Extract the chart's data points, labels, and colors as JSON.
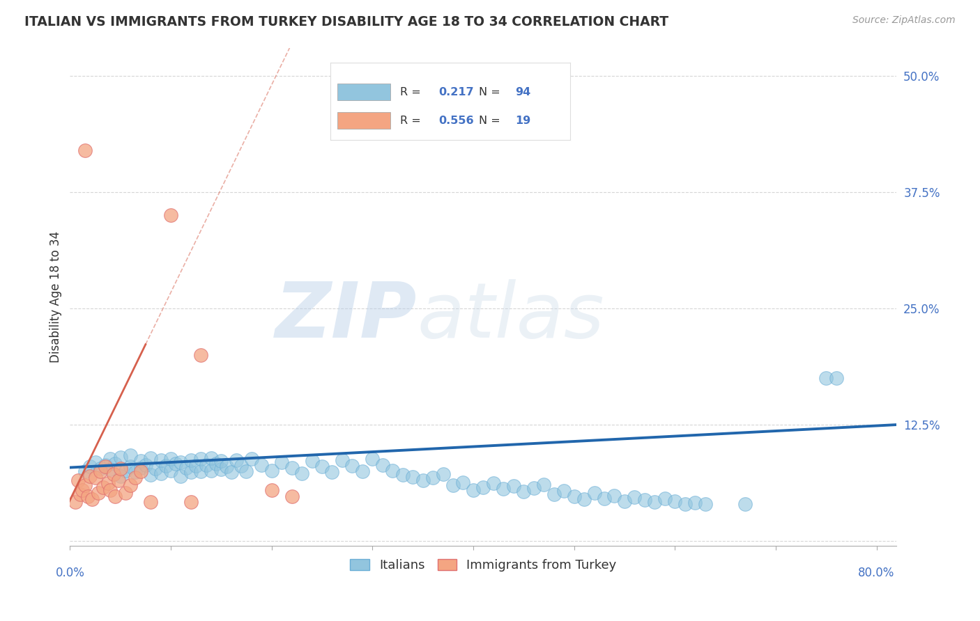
{
  "title": "ITALIAN VS IMMIGRANTS FROM TURKEY DISABILITY AGE 18 TO 34 CORRELATION CHART",
  "source": "Source: ZipAtlas.com",
  "ylabel": "Disability Age 18 to 34",
  "xlim": [
    0.0,
    0.82
  ],
  "ylim": [
    -0.005,
    0.53
  ],
  "xticks": [
    0.0,
    0.1,
    0.2,
    0.3,
    0.4,
    0.5,
    0.6,
    0.7,
    0.8
  ],
  "yticks_right": [
    0.0,
    0.125,
    0.25,
    0.375,
    0.5
  ],
  "ytick_labels_right": [
    "",
    "12.5%",
    "25.0%",
    "37.5%",
    "50.0%"
  ],
  "blue_color": "#92c5de",
  "blue_edge_color": "#6aaed6",
  "pink_color": "#f4a582",
  "pink_edge_color": "#e07070",
  "line_blue_color": "#2166ac",
  "line_pink_color": "#d6604d",
  "watermark_zip": "ZIP",
  "watermark_atlas": "atlas",
  "watermark_color": "#c8dff0",
  "axis_label_color": "#4472c4",
  "grid_color": "#cccccc",
  "background_color": "#ffffff",
  "blue_scatter_x": [
    0.015,
    0.02,
    0.025,
    0.03,
    0.035,
    0.04,
    0.04,
    0.045,
    0.05,
    0.05,
    0.055,
    0.06,
    0.06,
    0.065,
    0.07,
    0.07,
    0.075,
    0.08,
    0.08,
    0.085,
    0.09,
    0.09,
    0.095,
    0.1,
    0.1,
    0.105,
    0.11,
    0.11,
    0.115,
    0.12,
    0.12,
    0.125,
    0.13,
    0.13,
    0.135,
    0.14,
    0.14,
    0.145,
    0.15,
    0.15,
    0.155,
    0.16,
    0.165,
    0.17,
    0.175,
    0.18,
    0.19,
    0.2,
    0.21,
    0.22,
    0.23,
    0.24,
    0.25,
    0.26,
    0.27,
    0.28,
    0.29,
    0.3,
    0.31,
    0.32,
    0.33,
    0.34,
    0.35,
    0.36,
    0.37,
    0.38,
    0.39,
    0.4,
    0.41,
    0.42,
    0.43,
    0.44,
    0.45,
    0.46,
    0.47,
    0.48,
    0.49,
    0.5,
    0.51,
    0.52,
    0.53,
    0.54,
    0.55,
    0.56,
    0.57,
    0.58,
    0.59,
    0.6,
    0.61,
    0.62,
    0.63,
    0.67,
    0.75,
    0.76
  ],
  "blue_scatter_y": [
    0.075,
    0.08,
    0.085,
    0.078,
    0.082,
    0.077,
    0.088,
    0.083,
    0.07,
    0.09,
    0.076,
    0.08,
    0.092,
    0.074,
    0.079,
    0.086,
    0.082,
    0.071,
    0.089,
    0.078,
    0.073,
    0.087,
    0.081,
    0.076,
    0.088,
    0.083,
    0.07,
    0.085,
    0.079,
    0.074,
    0.087,
    0.081,
    0.075,
    0.088,
    0.082,
    0.076,
    0.089,
    0.083,
    0.077,
    0.086,
    0.08,
    0.074,
    0.087,
    0.081,
    0.075,
    0.088,
    0.082,
    0.076,
    0.085,
    0.079,
    0.073,
    0.086,
    0.08,
    0.074,
    0.087,
    0.081,
    0.075,
    0.088,
    0.082,
    0.076,
    0.071,
    0.069,
    0.065,
    0.068,
    0.072,
    0.06,
    0.063,
    0.055,
    0.058,
    0.062,
    0.056,
    0.059,
    0.053,
    0.057,
    0.061,
    0.05,
    0.054,
    0.048,
    0.045,
    0.052,
    0.046,
    0.049,
    0.043,
    0.047,
    0.044,
    0.042,
    0.046,
    0.043,
    0.04,
    0.041,
    0.04,
    0.04,
    0.175,
    0.175
  ],
  "pink_scatter_x": [
    0.005,
    0.008,
    0.01,
    0.012,
    0.015,
    0.018,
    0.02,
    0.022,
    0.025,
    0.028,
    0.03,
    0.033,
    0.035,
    0.038,
    0.04,
    0.043,
    0.045,
    0.048,
    0.05,
    0.055,
    0.06,
    0.065,
    0.07,
    0.08,
    0.1,
    0.12,
    0.13,
    0.015,
    0.2,
    0.22
  ],
  "pink_scatter_y": [
    0.042,
    0.065,
    0.05,
    0.055,
    0.06,
    0.048,
    0.07,
    0.045,
    0.068,
    0.052,
    0.075,
    0.058,
    0.08,
    0.062,
    0.055,
    0.072,
    0.048,
    0.065,
    0.078,
    0.052,
    0.06,
    0.068,
    0.075,
    0.042,
    0.35,
    0.042,
    0.2,
    0.42,
    0.055,
    0.048
  ],
  "legend_items": [
    "Italians",
    "Immigrants from Turkey"
  ]
}
